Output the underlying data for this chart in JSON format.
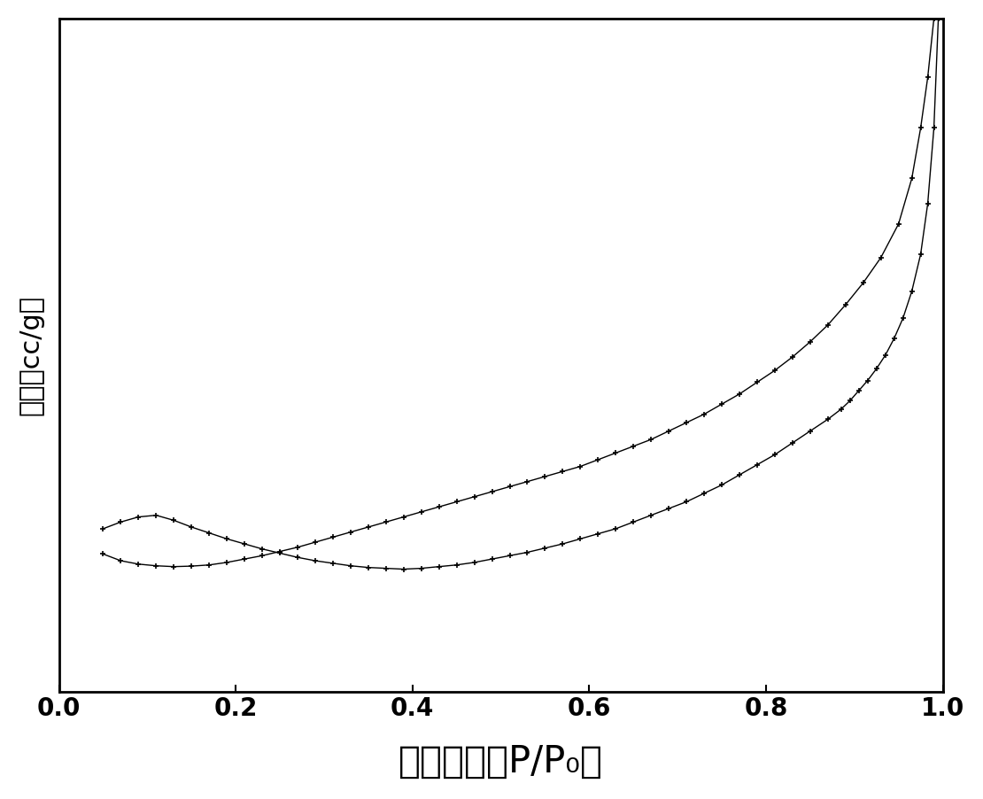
{
  "xlabel": "相对压力（P/P₀）",
  "ylabel": "容积（cc/g）",
  "xlim": [
    0.0,
    1.0
  ],
  "ylim": [
    0,
    400
  ],
  "background_color": "#ffffff",
  "line_color": "#000000",
  "marker": "+",
  "xlabel_fontsize": 30,
  "ylabel_fontsize": 22,
  "tick_fontsize": 20,
  "adsorption_x": [
    0.05,
    0.07,
    0.09,
    0.11,
    0.13,
    0.15,
    0.17,
    0.19,
    0.21,
    0.23,
    0.25,
    0.27,
    0.29,
    0.31,
    0.33,
    0.35,
    0.37,
    0.39,
    0.41,
    0.43,
    0.45,
    0.47,
    0.49,
    0.51,
    0.53,
    0.55,
    0.57,
    0.59,
    0.61,
    0.63,
    0.65,
    0.67,
    0.69,
    0.71,
    0.73,
    0.75,
    0.77,
    0.79,
    0.81,
    0.83,
    0.85,
    0.87,
    0.89,
    0.91,
    0.93,
    0.95,
    0.965,
    0.975,
    0.983,
    0.99,
    0.995,
    0.998
  ],
  "adsorption_y": [
    82,
    78,
    76,
    75,
    74.5,
    74.8,
    75.5,
    77,
    79,
    81,
    83.5,
    86,
    89,
    92,
    95,
    98,
    101,
    104,
    107,
    110,
    113,
    116,
    119,
    122,
    125,
    128,
    131,
    134,
    138,
    142,
    146,
    150,
    155,
    160,
    165,
    171,
    177,
    184,
    191,
    199,
    208,
    218,
    230,
    243,
    258,
    278,
    305,
    335,
    365,
    400,
    445,
    490
  ],
  "desorption_x": [
    0.998,
    0.995,
    0.99,
    0.983,
    0.975,
    0.965,
    0.955,
    0.945,
    0.935,
    0.925,
    0.915,
    0.905,
    0.895,
    0.885,
    0.87,
    0.85,
    0.83,
    0.81,
    0.79,
    0.77,
    0.75,
    0.73,
    0.71,
    0.69,
    0.67,
    0.65,
    0.63,
    0.61,
    0.59,
    0.57,
    0.55,
    0.53,
    0.51,
    0.49,
    0.47,
    0.45,
    0.43,
    0.41,
    0.39,
    0.37,
    0.35,
    0.33,
    0.31,
    0.29,
    0.27,
    0.25,
    0.23,
    0.21,
    0.19,
    0.17,
    0.15,
    0.13,
    0.11,
    0.09,
    0.07,
    0.05
  ],
  "desorption_y": [
    490,
    400,
    335,
    290,
    260,
    238,
    222,
    210,
    200,
    192,
    185,
    179,
    173,
    168,
    162,
    155,
    148,
    141,
    135,
    129,
    123,
    118,
    113,
    109,
    105,
    101,
    97,
    94,
    91,
    88,
    85.5,
    83,
    81,
    79,
    77,
    75.5,
    74.5,
    73.5,
    73,
    73.5,
    74,
    75,
    76.5,
    78,
    80,
    82.5,
    85,
    88,
    91,
    94.5,
    98,
    102,
    105,
    104,
    101,
    97
  ]
}
